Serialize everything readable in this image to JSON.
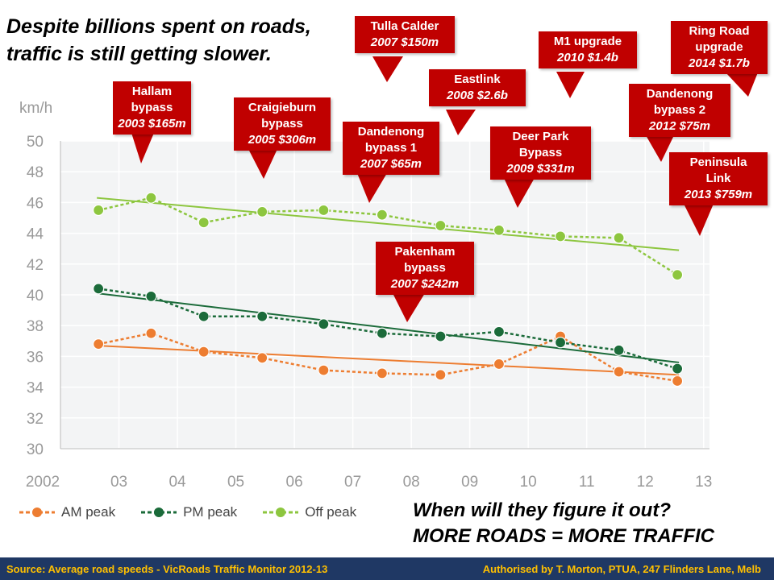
{
  "headline": [
    "Despite billions spent on roads,",
    "traffic is still getting slower."
  ],
  "chart_data": {
    "type": "line",
    "title": "",
    "ylabel": "km/h",
    "ylim": [
      30,
      50
    ],
    "yticks": [
      "30",
      "32",
      "34",
      "36",
      "38",
      "40",
      "42",
      "44",
      "46",
      "48",
      "50"
    ],
    "xlim": [
      2002,
      2013.1
    ],
    "xtick_labels": [
      "2002",
      "03",
      "04",
      "05",
      "06",
      "07",
      "08",
      "09",
      "10",
      "11",
      "12",
      "13"
    ],
    "x": [
      2002.65,
      2003.55,
      2004.45,
      2005.45,
      2006.5,
      2007.5,
      2008.5,
      2009.5,
      2010.55,
      2011.55,
      2012.55
    ],
    "series": [
      {
        "name": "AM peak",
        "color": "#ed7d31",
        "values": [
          36.8,
          37.5,
          36.3,
          35.9,
          35.1,
          34.9,
          34.8,
          35.5,
          37.3,
          35.0,
          34.4
        ],
        "trend": [
          36.7,
          34.8
        ]
      },
      {
        "name": "PM peak",
        "color": "#1b6b3a",
        "values": [
          40.4,
          39.9,
          38.6,
          38.6,
          38.1,
          37.5,
          37.3,
          37.6,
          36.9,
          36.4,
          35.2
        ],
        "trend": [
          40.1,
          35.6
        ]
      },
      {
        "name": "Off peak",
        "color": "#8dc63f",
        "values": [
          45.5,
          46.3,
          44.7,
          45.4,
          45.5,
          45.2,
          44.5,
          44.2,
          43.8,
          43.7,
          41.3
        ],
        "trend": [
          46.3,
          42.9
        ]
      }
    ],
    "grid": true,
    "legend": "bottom-left"
  },
  "callouts": [
    {
      "name": "Hallam",
      "lines": [
        "Hallam",
        "bypass"
      ],
      "cost": "2003 $165m"
    },
    {
      "name": "Craigieburn",
      "lines": [
        "Craigieburn",
        "bypass"
      ],
      "cost": "2005 $306m"
    },
    {
      "name": "Tulla Calder",
      "lines": [
        "Tulla Calder"
      ],
      "cost": "2007 $150m"
    },
    {
      "name": "Dandenong bypass 1",
      "lines": [
        "Dandenong",
        "bypass 1"
      ],
      "cost": "2007 $65m"
    },
    {
      "name": "Pakenham",
      "lines": [
        "Pakenham",
        "bypass"
      ],
      "cost": "2007 $242m"
    },
    {
      "name": "Eastlink",
      "lines": [
        "Eastlink"
      ],
      "cost": "2008 $2.6b"
    },
    {
      "name": "Deer Park",
      "lines": [
        "Deer Park",
        "Bypass"
      ],
      "cost": "2009 $331m"
    },
    {
      "name": "M1",
      "lines": [
        "M1 upgrade"
      ],
      "cost": "2010 $1.4b"
    },
    {
      "name": "Dandenong bypass 2",
      "lines": [
        "Dandenong",
        "bypass 2"
      ],
      "cost": "2012 $75m"
    },
    {
      "name": "Peninsula",
      "lines": [
        "Peninsula",
        "Link"
      ],
      "cost": "2013 $759m"
    },
    {
      "name": "Ring Road",
      "lines": [
        "Ring Road",
        "upgrade"
      ],
      "cost": "2014 $1.7b"
    }
  ],
  "question": [
    "When will they figure it out?",
    "MORE ROADS = MORE TRAFFIC"
  ],
  "footer": {
    "source": "Source: Average road speeds - VicRoads Traffic Monitor 2012-13",
    "credit": "Authorised by T. Morton, PTUA, 247 Flinders Lane, Melb"
  }
}
